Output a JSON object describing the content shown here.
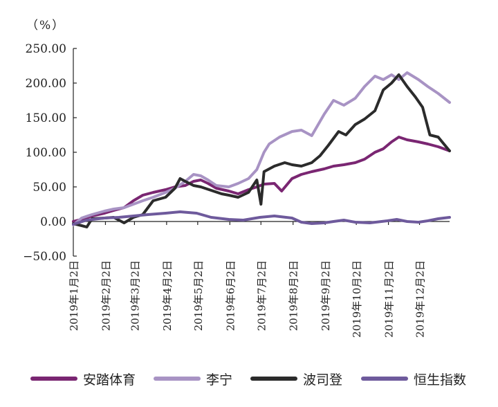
{
  "chart_data": {
    "type": "line",
    "unit_label": "（%）",
    "ylim": [
      -50,
      250
    ],
    "yticks": [
      -50,
      0,
      50,
      100,
      150,
      200,
      250
    ],
    "ytick_labels": [
      "−50.00",
      "0.00",
      "50.00",
      "100.00",
      "150.00",
      "200.00",
      "250.00"
    ],
    "x_domain": [
      "2019-01-02",
      "2019-12-31"
    ],
    "xticks": [
      "2019-01-02",
      "2019-02-02",
      "2019-03-02",
      "2019-04-02",
      "2019-05-02",
      "2019-06-02",
      "2019-07-02",
      "2019-08-02",
      "2019-09-02",
      "2019-10-02",
      "2019-11-02",
      "2019-12-02"
    ],
    "xtick_labels": [
      "2019年1月2日",
      "2019年2月2日",
      "2019年3月2日",
      "2019年4月2日",
      "2019年5月2日",
      "2019年6月2日",
      "2019年7月2日",
      "2019年8月2日",
      "2019年9月2日",
      "2019年10月2日",
      "2019年11月2日",
      "2019年12月2日"
    ],
    "legend_position": "bottom",
    "grid": false,
    "series": [
      {
        "name": "安踏体育",
        "color": "#7a2672",
        "points": [
          [
            "2019-01-02",
            0
          ],
          [
            "2019-01-10",
            3
          ],
          [
            "2019-01-20",
            8
          ],
          [
            "2019-02-01",
            12
          ],
          [
            "2019-02-10",
            16
          ],
          [
            "2019-02-20",
            20
          ],
          [
            "2019-03-01",
            30
          ],
          [
            "2019-03-10",
            38
          ],
          [
            "2019-03-20",
            42
          ],
          [
            "2019-04-01",
            46
          ],
          [
            "2019-04-10",
            50
          ],
          [
            "2019-04-20",
            52
          ],
          [
            "2019-04-28",
            58
          ],
          [
            "2019-05-05",
            60
          ],
          [
            "2019-05-12",
            55
          ],
          [
            "2019-05-20",
            48
          ],
          [
            "2019-06-01",
            44
          ],
          [
            "2019-06-10",
            40
          ],
          [
            "2019-06-20",
            46
          ],
          [
            "2019-06-28",
            50
          ],
          [
            "2019-07-05",
            54
          ],
          [
            "2019-07-15",
            55
          ],
          [
            "2019-07-22",
            44
          ],
          [
            "2019-08-01",
            62
          ],
          [
            "2019-08-10",
            68
          ],
          [
            "2019-08-20",
            72
          ],
          [
            "2019-09-01",
            76
          ],
          [
            "2019-09-10",
            80
          ],
          [
            "2019-09-20",
            82
          ],
          [
            "2019-10-01",
            85
          ],
          [
            "2019-10-10",
            90
          ],
          [
            "2019-10-20",
            100
          ],
          [
            "2019-10-28",
            105
          ],
          [
            "2019-11-05",
            115
          ],
          [
            "2019-11-12",
            122
          ],
          [
            "2019-11-20",
            118
          ],
          [
            "2019-12-01",
            115
          ],
          [
            "2019-12-10",
            112
          ],
          [
            "2019-12-20",
            108
          ],
          [
            "2019-12-31",
            102
          ]
        ]
      },
      {
        "name": "李宁",
        "color": "#a893c4",
        "points": [
          [
            "2019-01-02",
            -5
          ],
          [
            "2019-01-10",
            5
          ],
          [
            "2019-01-20",
            10
          ],
          [
            "2019-02-01",
            15
          ],
          [
            "2019-02-10",
            18
          ],
          [
            "2019-02-20",
            20
          ],
          [
            "2019-03-01",
            25
          ],
          [
            "2019-03-10",
            30
          ],
          [
            "2019-03-20",
            35
          ],
          [
            "2019-04-01",
            42
          ],
          [
            "2019-04-10",
            48
          ],
          [
            "2019-04-20",
            58
          ],
          [
            "2019-04-28",
            68
          ],
          [
            "2019-05-05",
            66
          ],
          [
            "2019-05-12",
            60
          ],
          [
            "2019-05-20",
            52
          ],
          [
            "2019-06-01",
            50
          ],
          [
            "2019-06-10",
            55
          ],
          [
            "2019-06-20",
            62
          ],
          [
            "2019-06-28",
            75
          ],
          [
            "2019-07-05",
            100
          ],
          [
            "2019-07-10",
            112
          ],
          [
            "2019-07-20",
            122
          ],
          [
            "2019-08-01",
            130
          ],
          [
            "2019-08-10",
            132
          ],
          [
            "2019-08-20",
            124
          ],
          [
            "2019-09-01",
            155
          ],
          [
            "2019-09-10",
            175
          ],
          [
            "2019-09-20",
            168
          ],
          [
            "2019-10-01",
            178
          ],
          [
            "2019-10-10",
            195
          ],
          [
            "2019-10-20",
            210
          ],
          [
            "2019-10-28",
            205
          ],
          [
            "2019-11-05",
            212
          ],
          [
            "2019-11-12",
            205
          ],
          [
            "2019-11-20",
            215
          ],
          [
            "2019-12-01",
            205
          ],
          [
            "2019-12-10",
            195
          ],
          [
            "2019-12-20",
            185
          ],
          [
            "2019-12-31",
            172
          ]
        ]
      },
      {
        "name": "波司登",
        "color": "#2b2b2b",
        "points": [
          [
            "2019-01-02",
            -3
          ],
          [
            "2019-01-10",
            -6
          ],
          [
            "2019-01-15",
            -8
          ],
          [
            "2019-01-20",
            4
          ],
          [
            "2019-02-01",
            5
          ],
          [
            "2019-02-10",
            6
          ],
          [
            "2019-02-20",
            -2
          ],
          [
            "2019-03-01",
            6
          ],
          [
            "2019-03-10",
            10
          ],
          [
            "2019-03-20",
            30
          ],
          [
            "2019-04-01",
            35
          ],
          [
            "2019-04-10",
            48
          ],
          [
            "2019-04-15",
            62
          ],
          [
            "2019-04-20",
            58
          ],
          [
            "2019-04-28",
            52
          ],
          [
            "2019-05-05",
            50
          ],
          [
            "2019-05-15",
            45
          ],
          [
            "2019-05-25",
            40
          ],
          [
            "2019-06-01",
            38
          ],
          [
            "2019-06-10",
            35
          ],
          [
            "2019-06-20",
            42
          ],
          [
            "2019-06-28",
            60
          ],
          [
            "2019-07-02",
            25
          ],
          [
            "2019-07-05",
            72
          ],
          [
            "2019-07-15",
            80
          ],
          [
            "2019-07-25",
            85
          ],
          [
            "2019-08-01",
            82
          ],
          [
            "2019-08-10",
            80
          ],
          [
            "2019-08-20",
            85
          ],
          [
            "2019-08-28",
            95
          ],
          [
            "2019-09-05",
            110
          ],
          [
            "2019-09-15",
            130
          ],
          [
            "2019-09-22",
            125
          ],
          [
            "2019-10-01",
            140
          ],
          [
            "2019-10-10",
            148
          ],
          [
            "2019-10-20",
            160
          ],
          [
            "2019-10-28",
            190
          ],
          [
            "2019-11-05",
            200
          ],
          [
            "2019-11-12",
            212
          ],
          [
            "2019-11-20",
            195
          ],
          [
            "2019-11-28",
            180
          ],
          [
            "2019-12-05",
            165
          ],
          [
            "2019-12-12",
            125
          ],
          [
            "2019-12-20",
            122
          ],
          [
            "2019-12-31",
            102
          ]
        ]
      },
      {
        "name": "恒生指数",
        "color": "#6e5a9c",
        "points": [
          [
            "2019-01-02",
            -4
          ],
          [
            "2019-01-15",
            2
          ],
          [
            "2019-02-01",
            5
          ],
          [
            "2019-02-15",
            6
          ],
          [
            "2019-03-01",
            8
          ],
          [
            "2019-03-15",
            10
          ],
          [
            "2019-04-01",
            12
          ],
          [
            "2019-04-15",
            14
          ],
          [
            "2019-05-01",
            12
          ],
          [
            "2019-05-15",
            6
          ],
          [
            "2019-06-01",
            3
          ],
          [
            "2019-06-15",
            2
          ],
          [
            "2019-07-01",
            6
          ],
          [
            "2019-07-15",
            8
          ],
          [
            "2019-08-01",
            5
          ],
          [
            "2019-08-10",
            -1
          ],
          [
            "2019-08-20",
            -3
          ],
          [
            "2019-09-01",
            -2
          ],
          [
            "2019-09-10",
            0
          ],
          [
            "2019-09-20",
            2
          ],
          [
            "2019-10-01",
            -1
          ],
          [
            "2019-10-15",
            -2
          ],
          [
            "2019-11-01",
            1
          ],
          [
            "2019-11-10",
            3
          ],
          [
            "2019-11-20",
            0
          ],
          [
            "2019-12-01",
            -1
          ],
          [
            "2019-12-10",
            1
          ],
          [
            "2019-12-20",
            4
          ],
          [
            "2019-12-31",
            6
          ]
        ]
      }
    ]
  },
  "legend": {
    "items": [
      "安踏体育",
      "李宁",
      "波司登",
      "恒生指数"
    ],
    "colors": [
      "#7a2672",
      "#a893c4",
      "#2b2b2b",
      "#6e5a9c"
    ]
  }
}
